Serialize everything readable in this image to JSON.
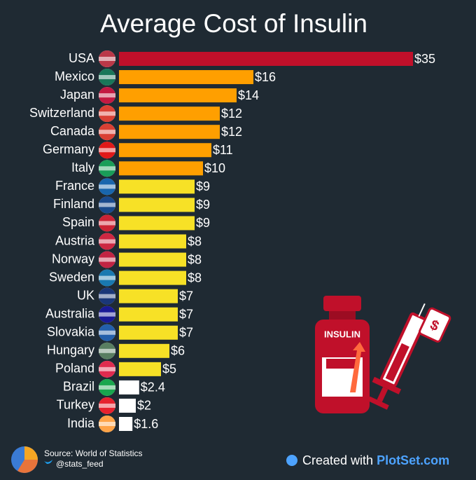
{
  "chart_data": {
    "type": "bar",
    "orientation": "horizontal",
    "title": "Average Cost of Insulin",
    "categories": [
      "USA",
      "Mexico",
      "Japan",
      "Switzerland",
      "Canada",
      "Germany",
      "Italy",
      "France",
      "Finland",
      "Spain",
      "Austria",
      "Norway",
      "Sweden",
      "UK",
      "Australia",
      "Slovakia",
      "Hungary",
      "Poland",
      "Brazil",
      "Turkey",
      "India"
    ],
    "values": [
      35,
      16,
      14,
      12,
      12,
      11,
      10,
      9,
      9,
      9,
      8,
      8,
      8,
      7,
      7,
      7,
      6,
      5,
      2.4,
      2,
      1.6
    ],
    "value_labels": [
      "$35",
      "$16",
      "$14",
      "$12",
      "$12",
      "$11",
      "$10",
      "$9",
      "$9",
      "$9",
      "$8",
      "$8",
      "$8",
      "$7",
      "$7",
      "$7",
      "$6",
      "$5",
      "$2.4",
      "$2",
      "$1.6"
    ],
    "colors": [
      "#c0102a",
      "#ff9f00",
      "#ff9f00",
      "#ff9f00",
      "#ff9f00",
      "#ff9f00",
      "#ff9f00",
      "#f7e126",
      "#f7e126",
      "#f7e126",
      "#f7e126",
      "#f7e126",
      "#f7e126",
      "#f7e126",
      "#f7e126",
      "#f7e126",
      "#f7e126",
      "#f7e126",
      "#ffffff",
      "#ffffff",
      "#ffffff"
    ],
    "illustration_label": "INSULIN",
    "source": "Source: World of Statistics",
    "handle": "@stats_feed",
    "credit": "Created with",
    "brand": "PlotSet.com"
  }
}
